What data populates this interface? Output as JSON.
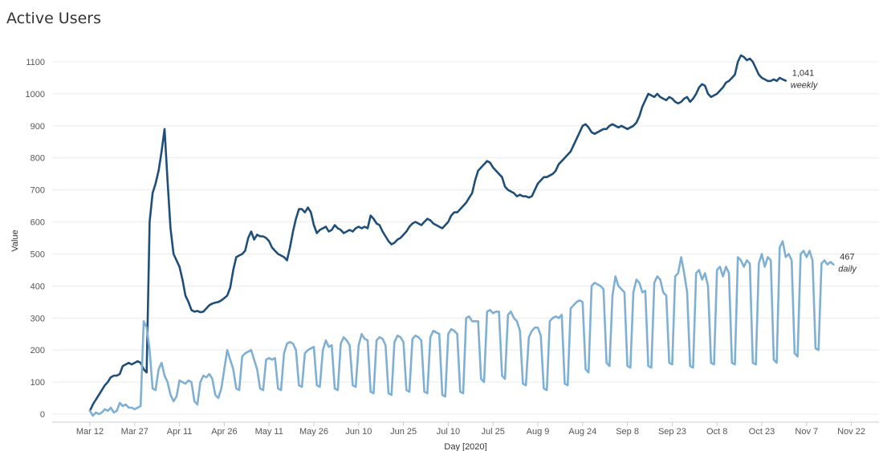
{
  "title": "Active Users",
  "chart_data": {
    "type": "line",
    "title": "Active Users",
    "xlabel": "Day [2020]",
    "ylabel": "Value",
    "ylim": [
      0,
      1150
    ],
    "y_ticks": [
      0,
      100,
      200,
      300,
      400,
      500,
      600,
      700,
      800,
      900,
      1000,
      1100
    ],
    "x_tick_labels": [
      "Mar 12",
      "Mar 27",
      "Apr 11",
      "Apr 26",
      "May 11",
      "May 26",
      "Jun 10",
      "Jun 25",
      "Jul 10",
      "Jul 25",
      "Aug 9",
      "Aug 24",
      "Sep 8",
      "Sep 23",
      "Oct 8",
      "Oct 23",
      "Nov 7",
      "Nov 22"
    ],
    "x_start": "Mar 12",
    "grid": true,
    "series": [
      {
        "name": "weekly",
        "color": "#1f4e79",
        "end_label": "1,041",
        "values": [
          10,
          30,
          45,
          60,
          75,
          90,
          100,
          115,
          120,
          120,
          125,
          150,
          155,
          160,
          155,
          160,
          165,
          160,
          140,
          130,
          600,
          690,
          720,
          760,
          820,
          890,
          730,
          580,
          500,
          480,
          460,
          420,
          370,
          350,
          325,
          320,
          322,
          318,
          320,
          330,
          340,
          345,
          348,
          350,
          355,
          362,
          370,
          395,
          450,
          490,
          495,
          500,
          510,
          550,
          570,
          545,
          560,
          555,
          555,
          550,
          540,
          520,
          510,
          500,
          495,
          490,
          480,
          520,
          570,
          610,
          640,
          640,
          630,
          645,
          630,
          590,
          565,
          575,
          580,
          585,
          570,
          575,
          590,
          580,
          575,
          565,
          570,
          575,
          570,
          580,
          585,
          580,
          585,
          580,
          620,
          610,
          595,
          590,
          570,
          555,
          540,
          530,
          535,
          545,
          550,
          560,
          570,
          585,
          595,
          600,
          595,
          590,
          600,
          610,
          605,
          595,
          590,
          585,
          580,
          590,
          600,
          620,
          630,
          630,
          640,
          650,
          660,
          675,
          690,
          730,
          760,
          770,
          780,
          790,
          785,
          770,
          760,
          750,
          740,
          710,
          700,
          695,
          690,
          680,
          685,
          680,
          680,
          676,
          680,
          700,
          720,
          730,
          740,
          740,
          745,
          750,
          760,
          780,
          790,
          800,
          810,
          820,
          840,
          860,
          880,
          900,
          905,
          895,
          880,
          875,
          880,
          885,
          890,
          890,
          900,
          905,
          900,
          895,
          900,
          895,
          890,
          895,
          900,
          910,
          930,
          960,
          980,
          1000,
          995,
          990,
          1000,
          990,
          985,
          980,
          990,
          985,
          975,
          970,
          975,
          985,
          990,
          975,
          985,
          1000,
          1020,
          1030,
          1025,
          1000,
          990,
          995,
          1000,
          1010,
          1020,
          1035,
          1040,
          1050,
          1060,
          1100,
          1120,
          1115,
          1105,
          1110,
          1100,
          1080,
          1060,
          1050,
          1045,
          1040,
          1040,
          1045,
          1040,
          1050,
          1045,
          1041
        ]
      },
      {
        "name": "daily",
        "color": "#7fb0d4",
        "end_label": "467",
        "values": [
          10,
          -5,
          5,
          0,
          5,
          15,
          10,
          20,
          5,
          10,
          35,
          25,
          30,
          20,
          20,
          15,
          20,
          25,
          290,
          270,
          200,
          80,
          75,
          140,
          160,
          120,
          100,
          60,
          40,
          55,
          105,
          100,
          95,
          105,
          100,
          40,
          30,
          100,
          120,
          115,
          125,
          110,
          60,
          50,
          80,
          140,
          200,
          170,
          140,
          80,
          75,
          180,
          190,
          195,
          200,
          170,
          140,
          80,
          75,
          170,
          175,
          170,
          175,
          80,
          75,
          190,
          220,
          225,
          220,
          200,
          90,
          85,
          190,
          200,
          205,
          210,
          90,
          85,
          200,
          230,
          210,
          215,
          80,
          75,
          220,
          240,
          230,
          215,
          90,
          85,
          215,
          250,
          235,
          230,
          70,
          65,
          230,
          240,
          235,
          215,
          65,
          60,
          225,
          245,
          240,
          225,
          75,
          70,
          235,
          245,
          240,
          230,
          70,
          65,
          240,
          260,
          255,
          250,
          60,
          55,
          250,
          265,
          260,
          250,
          70,
          65,
          300,
          305,
          290,
          290,
          290,
          110,
          100,
          320,
          325,
          315,
          320,
          320,
          120,
          110,
          310,
          320,
          300,
          290,
          260,
          95,
          90,
          240,
          260,
          270,
          270,
          245,
          80,
          75,
          290,
          300,
          305,
          300,
          310,
          95,
          90,
          330,
          340,
          350,
          355,
          350,
          140,
          130,
          400,
          410,
          405,
          400,
          390,
          160,
          150,
          370,
          430,
          400,
          390,
          380,
          150,
          145,
          380,
          420,
          410,
          380,
          385,
          150,
          145,
          410,
          430,
          420,
          380,
          370,
          160,
          155,
          430,
          440,
          490,
          440,
          380,
          150,
          145,
          440,
          450,
          420,
          440,
          400,
          160,
          155,
          450,
          460,
          430,
          460,
          440,
          160,
          155,
          490,
          480,
          460,
          480,
          470,
          160,
          155,
          470,
          500,
          460,
          490,
          480,
          170,
          160,
          520,
          540,
          490,
          500,
          480,
          190,
          180,
          500,
          510,
          490,
          510,
          480,
          205,
          200,
          470,
          480,
          467,
          475,
          467
        ]
      }
    ]
  }
}
